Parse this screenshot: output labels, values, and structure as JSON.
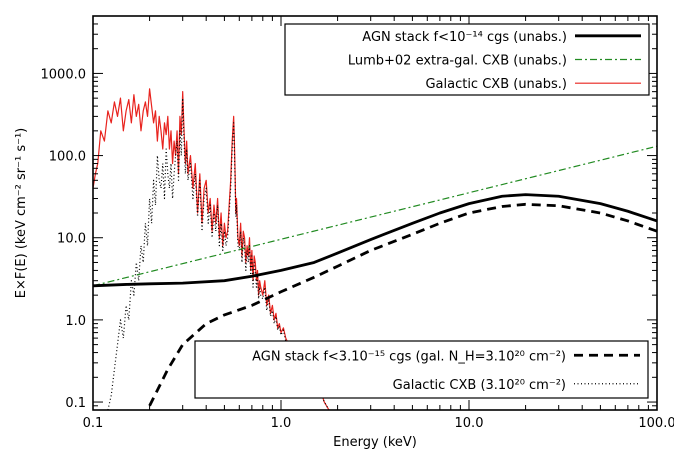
{
  "chart_data": {
    "type": "line",
    "title": "",
    "xlabel": "Energy (keV)",
    "ylabel": "E×F(E) (keV cm⁻² sr⁻¹ s⁻¹)",
    "x_scale": "log",
    "y_scale": "log",
    "xlim": [
      0.1,
      100.0
    ],
    "ylim": [
      0.08,
      5000
    ],
    "x_ticks": [
      0.1,
      1.0,
      10.0,
      100.0
    ],
    "x_tick_labels": [
      "0.1",
      "1.0",
      "10.0",
      "100.0"
    ],
    "y_ticks": [
      0.1,
      1.0,
      10.0,
      100.0,
      1000.0
    ],
    "y_tick_labels": [
      "0.1",
      "1.0",
      "10.0",
      "100.0",
      "1000.0"
    ],
    "grid": false,
    "legends": [
      {
        "placement": "top-right",
        "entries": [
          {
            "label": "AGN stack f<10⁻¹⁴ cgs (unabs.)",
            "series": "agn_unabs"
          },
          {
            "label": "Lumb+02 extra-gal. CXB (unabs.)",
            "series": "lumb02"
          },
          {
            "label": "Galactic CXB (unabs.)",
            "series": "gal_unabs"
          }
        ]
      },
      {
        "placement": "bottom-right",
        "entries": [
          {
            "label": "AGN stack f<3.10⁻¹⁵ cgs (gal. N_H=3.10²⁰ cm⁻²)",
            "series": "agn_abs"
          },
          {
            "label": "Galactic CXB (3.10²⁰ cm⁻²)",
            "series": "gal_abs"
          }
        ]
      }
    ],
    "series": [
      {
        "id": "agn_unabs",
        "name": "AGN stack f<10⁻¹⁴ cgs (unabs.)",
        "color": "#000000",
        "style": "solid-thick",
        "x": [
          0.1,
          0.15,
          0.2,
          0.3,
          0.5,
          0.7,
          1.0,
          1.5,
          2.0,
          3.0,
          5.0,
          7.0,
          10.0,
          15.0,
          20.0,
          30.0,
          50.0,
          70.0,
          100.0
        ],
        "y": [
          2.6,
          2.7,
          2.75,
          2.8,
          3.0,
          3.4,
          4.0,
          5.0,
          6.5,
          9.5,
          15.0,
          20.0,
          26.0,
          32.0,
          33.5,
          32.0,
          26.0,
          21.0,
          16.0
        ]
      },
      {
        "id": "agn_abs",
        "name": "AGN stack f<3.10⁻¹⁵ cgs (gal. N_H=3.10²⁰ cm⁻²)",
        "color": "#000000",
        "style": "dashed-thick",
        "x": [
          0.2,
          0.25,
          0.3,
          0.4,
          0.5,
          0.7,
          1.0,
          1.5,
          2.0,
          3.0,
          5.0,
          7.0,
          10.0,
          15.0,
          20.0,
          30.0,
          50.0,
          70.0,
          100.0
        ],
        "y": [
          0.09,
          0.25,
          0.5,
          0.9,
          1.15,
          1.5,
          2.2,
          3.3,
          4.5,
          7.0,
          11.0,
          15.0,
          20.0,
          24.0,
          25.5,
          24.5,
          20.0,
          16.0,
          12.0
        ]
      },
      {
        "id": "lumb02",
        "name": "Lumb+02 extra-gal. CXB (unabs.)",
        "color": "#228b22",
        "style": "dash-dot",
        "x": [
          0.1,
          100.0
        ],
        "y": [
          2.6,
          130.0
        ]
      },
      {
        "id": "gal_unabs",
        "name": "Galactic CXB (unabs.)",
        "color": "#e8231e",
        "style": "solid-thin",
        "x": [
          0.1,
          0.103,
          0.106,
          0.11,
          0.115,
          0.12,
          0.125,
          0.13,
          0.135,
          0.14,
          0.145,
          0.15,
          0.155,
          0.16,
          0.165,
          0.17,
          0.175,
          0.18,
          0.185,
          0.19,
          0.195,
          0.2,
          0.205,
          0.21,
          0.215,
          0.22,
          0.225,
          0.23,
          0.235,
          0.24,
          0.245,
          0.25,
          0.255,
          0.26,
          0.265,
          0.27,
          0.275,
          0.28,
          0.285,
          0.29,
          0.295,
          0.3,
          0.305,
          0.31,
          0.315,
          0.32,
          0.33,
          0.34,
          0.35,
          0.36,
          0.37,
          0.38,
          0.39,
          0.4,
          0.41,
          0.42,
          0.43,
          0.44,
          0.45,
          0.46,
          0.47,
          0.48,
          0.49,
          0.5,
          0.51,
          0.52,
          0.53,
          0.54,
          0.55,
          0.56,
          0.565,
          0.57,
          0.575,
          0.58,
          0.59,
          0.6,
          0.61,
          0.62,
          0.63,
          0.64,
          0.65,
          0.66,
          0.67,
          0.68,
          0.69,
          0.7,
          0.71,
          0.72,
          0.73,
          0.74,
          0.75,
          0.76,
          0.77,
          0.78,
          0.8,
          0.82,
          0.84,
          0.86,
          0.88,
          0.9,
          0.92,
          0.94,
          0.96,
          0.98,
          1.0,
          1.03,
          1.06,
          1.1,
          1.15,
          1.2,
          1.25,
          1.3,
          1.35,
          1.4,
          1.5,
          1.6,
          1.7,
          1.8
        ],
        "y": [
          40,
          60,
          80,
          200,
          150,
          350,
          250,
          450,
          300,
          500,
          200,
          350,
          480,
          250,
          550,
          300,
          420,
          200,
          350,
          450,
          300,
          650,
          400,
          250,
          350,
          150,
          300,
          200,
          120,
          250,
          180,
          300,
          120,
          200,
          80,
          150,
          100,
          200,
          60,
          300,
          180,
          600,
          200,
          80,
          150,
          60,
          100,
          40,
          80,
          20,
          60,
          15,
          40,
          50,
          20,
          30,
          12,
          25,
          15,
          30,
          10,
          20,
          8,
          15,
          10,
          12,
          25,
          50,
          150,
          300,
          150,
          60,
          20,
          30,
          10,
          8,
          15,
          6,
          12,
          10,
          5,
          8,
          6,
          10,
          4,
          7,
          3,
          6,
          5,
          3,
          4,
          2,
          3,
          2.5,
          2,
          3,
          1.5,
          2,
          1.2,
          1.5,
          1,
          1.2,
          0.8,
          0.9,
          0.7,
          0.8,
          0.6,
          0.5,
          0.55,
          0.4,
          0.45,
          0.3,
          0.35,
          0.25,
          0.2,
          0.15,
          0.1,
          0.08
        ]
      },
      {
        "id": "gal_abs",
        "name": "Galactic CXB (3.10²⁰ cm⁻²)",
        "color": "#000000",
        "style": "dotted",
        "x": [
          0.12,
          0.125,
          0.13,
          0.135,
          0.14,
          0.145,
          0.15,
          0.155,
          0.16,
          0.165,
          0.17,
          0.175,
          0.18,
          0.185,
          0.19,
          0.195,
          0.2,
          0.205,
          0.21,
          0.215,
          0.22,
          0.225,
          0.23,
          0.235,
          0.24,
          0.245,
          0.25,
          0.255,
          0.26,
          0.265,
          0.27,
          0.275,
          0.28,
          0.285,
          0.29,
          0.295,
          0.3,
          0.305,
          0.31,
          0.315,
          0.32,
          0.33,
          0.34,
          0.35,
          0.36,
          0.37,
          0.38,
          0.39,
          0.4,
          0.41,
          0.42,
          0.43,
          0.44,
          0.45,
          0.46,
          0.47,
          0.48,
          0.49,
          0.5,
          0.51,
          0.52,
          0.53,
          0.54,
          0.55,
          0.56,
          0.565,
          0.57,
          0.575,
          0.58,
          0.59,
          0.6,
          0.61,
          0.62,
          0.63,
          0.64,
          0.65,
          0.66,
          0.67,
          0.68,
          0.69,
          0.7,
          0.71,
          0.72,
          0.73,
          0.74,
          0.75,
          0.76,
          0.77,
          0.78,
          0.8,
          0.82,
          0.84,
          0.86,
          0.88,
          0.9,
          0.92,
          0.94,
          0.96,
          0.98,
          1.0,
          1.03,
          1.06,
          1.1,
          1.15,
          1.2,
          1.25,
          1.3,
          1.35,
          1.4,
          1.5,
          1.6,
          1.7,
          1.8
        ],
        "y": [
          0.08,
          0.12,
          0.25,
          0.5,
          1.0,
          0.6,
          1.5,
          1.0,
          3.0,
          2.0,
          5.0,
          3.0,
          8.0,
          5.0,
          15.0,
          8.0,
          30.0,
          15.0,
          50.0,
          25.0,
          100.0,
          50.0,
          40.0,
          80.0,
          30.0,
          120.0,
          60.0,
          40.0,
          80.0,
          30.0,
          60.0,
          100.0,
          150.0,
          50.0,
          200.0,
          100.0,
          500.0,
          150.0,
          60.0,
          120.0,
          50.0,
          80.0,
          30.0,
          60.0,
          18.0,
          50.0,
          12.0,
          30.0,
          40.0,
          15.0,
          25.0,
          10.0,
          20.0,
          12.0,
          25.0,
          8.0,
          15.0,
          7.0,
          12.0,
          8.0,
          10.0,
          20.0,
          40.0,
          120.0,
          250.0,
          120.0,
          50.0,
          18.0,
          25.0,
          8.0,
          7.0,
          12.0,
          5.0,
          10.0,
          8.0,
          4.0,
          7.0,
          5.0,
          8.0,
          3.5,
          6.0,
          2.5,
          5.0,
          4.0,
          2.5,
          3.5,
          1.8,
          2.5,
          2.0,
          1.8,
          2.5,
          1.3,
          1.8,
          1.1,
          1.3,
          0.9,
          1.1,
          0.75,
          0.85,
          0.65,
          0.75,
          0.55,
          0.45,
          0.5,
          0.38,
          0.42,
          0.28,
          0.32,
          0.22,
          0.18,
          0.14,
          0.1,
          0.08
        ]
      }
    ]
  }
}
